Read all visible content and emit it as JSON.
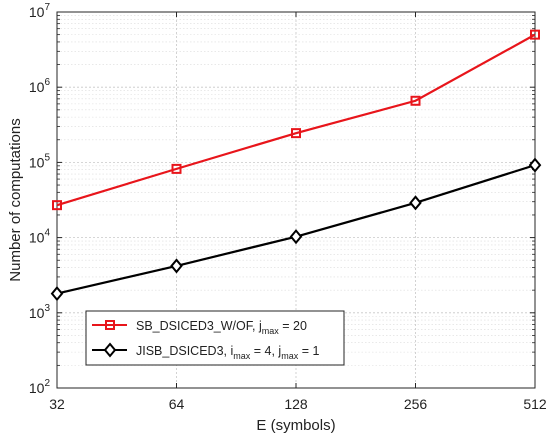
{
  "chart_data": {
    "type": "line",
    "title": "",
    "xlabel": "E (symbols)",
    "ylabel": "Number of computations",
    "x": [
      32,
      64,
      128,
      256,
      512
    ],
    "xlim": [
      32,
      512
    ],
    "xticks": [
      32,
      64,
      128,
      256,
      512
    ],
    "ylim": [
      100,
      10000000
    ],
    "yscale": "log",
    "yticks": [
      {
        "value": 100,
        "base": "10",
        "exp": "2"
      },
      {
        "value": 1000,
        "base": "10",
        "exp": "3"
      },
      {
        "value": 10000,
        "base": "10",
        "exp": "4"
      },
      {
        "value": 100000,
        "base": "10",
        "exp": "5"
      },
      {
        "value": 1000000,
        "base": "10",
        "exp": "6"
      },
      {
        "value": 10000000,
        "base": "10",
        "exp": "7"
      }
    ],
    "grid": true,
    "legend_position": "lower-left",
    "series": [
      {
        "label_main": "SB_DSICED3_W/OF, j",
        "label_sub": "max",
        "label_tail": " = 20",
        "color": "#e8151b",
        "marker": "square",
        "values": [
          27000,
          82000,
          245000,
          660000,
          5000000
        ]
      },
      {
        "label_main": "JISB_DSICED3, i",
        "label_sub": "max",
        "label_mid": " = 4, j",
        "label_sub2": "max",
        "label_tail": " = 1",
        "color": "#000000",
        "marker": "diamond",
        "values": [
          1800,
          4200,
          10300,
          29000,
          92000
        ]
      }
    ]
  }
}
